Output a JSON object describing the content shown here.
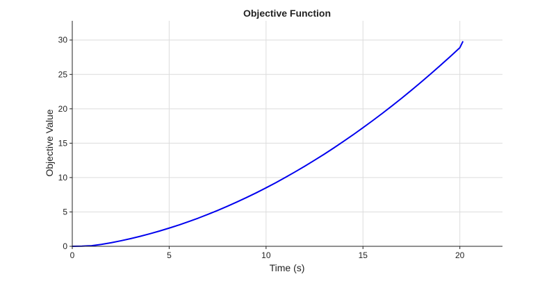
{
  "chart_data": {
    "type": "line",
    "title": "Objective Function",
    "xlabel": "Time (s)",
    "ylabel": "Objective Value",
    "xlim": [
      0,
      22.2
    ],
    "ylim": [
      0,
      32.8
    ],
    "xticks": [
      0,
      5,
      10,
      15,
      20
    ],
    "yticks": [
      0,
      5,
      10,
      15,
      20,
      25,
      30
    ],
    "grid": true,
    "series": [
      {
        "color": "#0000ee",
        "x": [
          0,
          0.5,
          1,
          1.5,
          2,
          2.5,
          3,
          3.5,
          4,
          4.5,
          5,
          5.5,
          6,
          6.5,
          7,
          7.5,
          8,
          8.5,
          9,
          9.5,
          10,
          10.5,
          11,
          11.5,
          12,
          12.5,
          13,
          13.5,
          14,
          14.5,
          15,
          15.5,
          16,
          16.5,
          17,
          17.5,
          18,
          18.5,
          19,
          19.5,
          20,
          20.15
        ],
        "y": [
          0,
          0.02,
          0.09,
          0.28,
          0.52,
          0.8,
          1.11,
          1.45,
          1.82,
          2.22,
          2.65,
          3.1,
          3.59,
          4.1,
          4.65,
          5.22,
          5.82,
          6.45,
          7.11,
          7.79,
          8.51,
          9.25,
          10.03,
          10.83,
          11.66,
          12.52,
          13.4,
          14.32,
          15.27,
          16.24,
          17.25,
          18.28,
          19.34,
          20.43,
          21.55,
          22.7,
          23.88,
          25.09,
          26.33,
          27.59,
          28.89,
          29.75
        ]
      }
    ]
  }
}
